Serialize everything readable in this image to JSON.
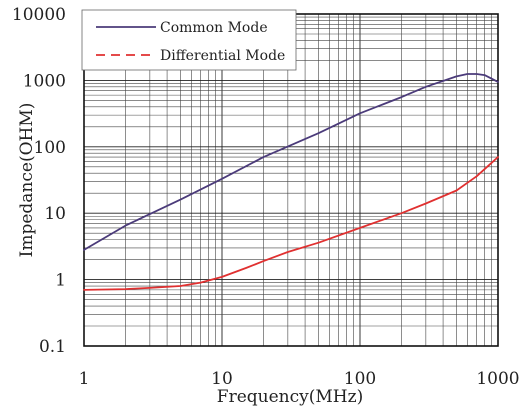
{
  "chart_data": {
    "type": "line",
    "title": "",
    "xlabel": "Frequency(MHz)",
    "ylabel": "Impedance(OHM)",
    "x_scale": "log",
    "y_scale": "log",
    "xlim": [
      1,
      1000
    ],
    "ylim": [
      0.1,
      10000
    ],
    "x_ticks": [
      "1",
      "10",
      "100",
      "1000"
    ],
    "y_ticks": [
      "0.1",
      "1",
      "10",
      "100",
      "1000",
      "10000"
    ],
    "grid": true,
    "legend_position": "top-left",
    "series": [
      {
        "name": "Common Mode",
        "color": "#4b3b7a",
        "dash": "solid",
        "x": [
          1,
          2,
          5,
          10,
          20,
          50,
          100,
          200,
          300,
          500,
          600,
          700,
          800,
          1000
        ],
        "y": [
          2.8,
          6.5,
          16,
          33,
          70,
          160,
          320,
          560,
          800,
          1150,
          1250,
          1250,
          1200,
          950
        ]
      },
      {
        "name": "Differential Mode",
        "color": "#e03030",
        "dash": "dashed",
        "x": [
          1,
          2,
          3,
          5,
          7,
          10,
          15,
          20,
          30,
          50,
          100,
          200,
          300,
          500,
          700,
          1000
        ],
        "y": [
          0.7,
          0.72,
          0.75,
          0.8,
          0.9,
          1.1,
          1.5,
          1.9,
          2.6,
          3.6,
          6.0,
          10,
          14,
          22,
          36,
          70
        ]
      }
    ]
  }
}
